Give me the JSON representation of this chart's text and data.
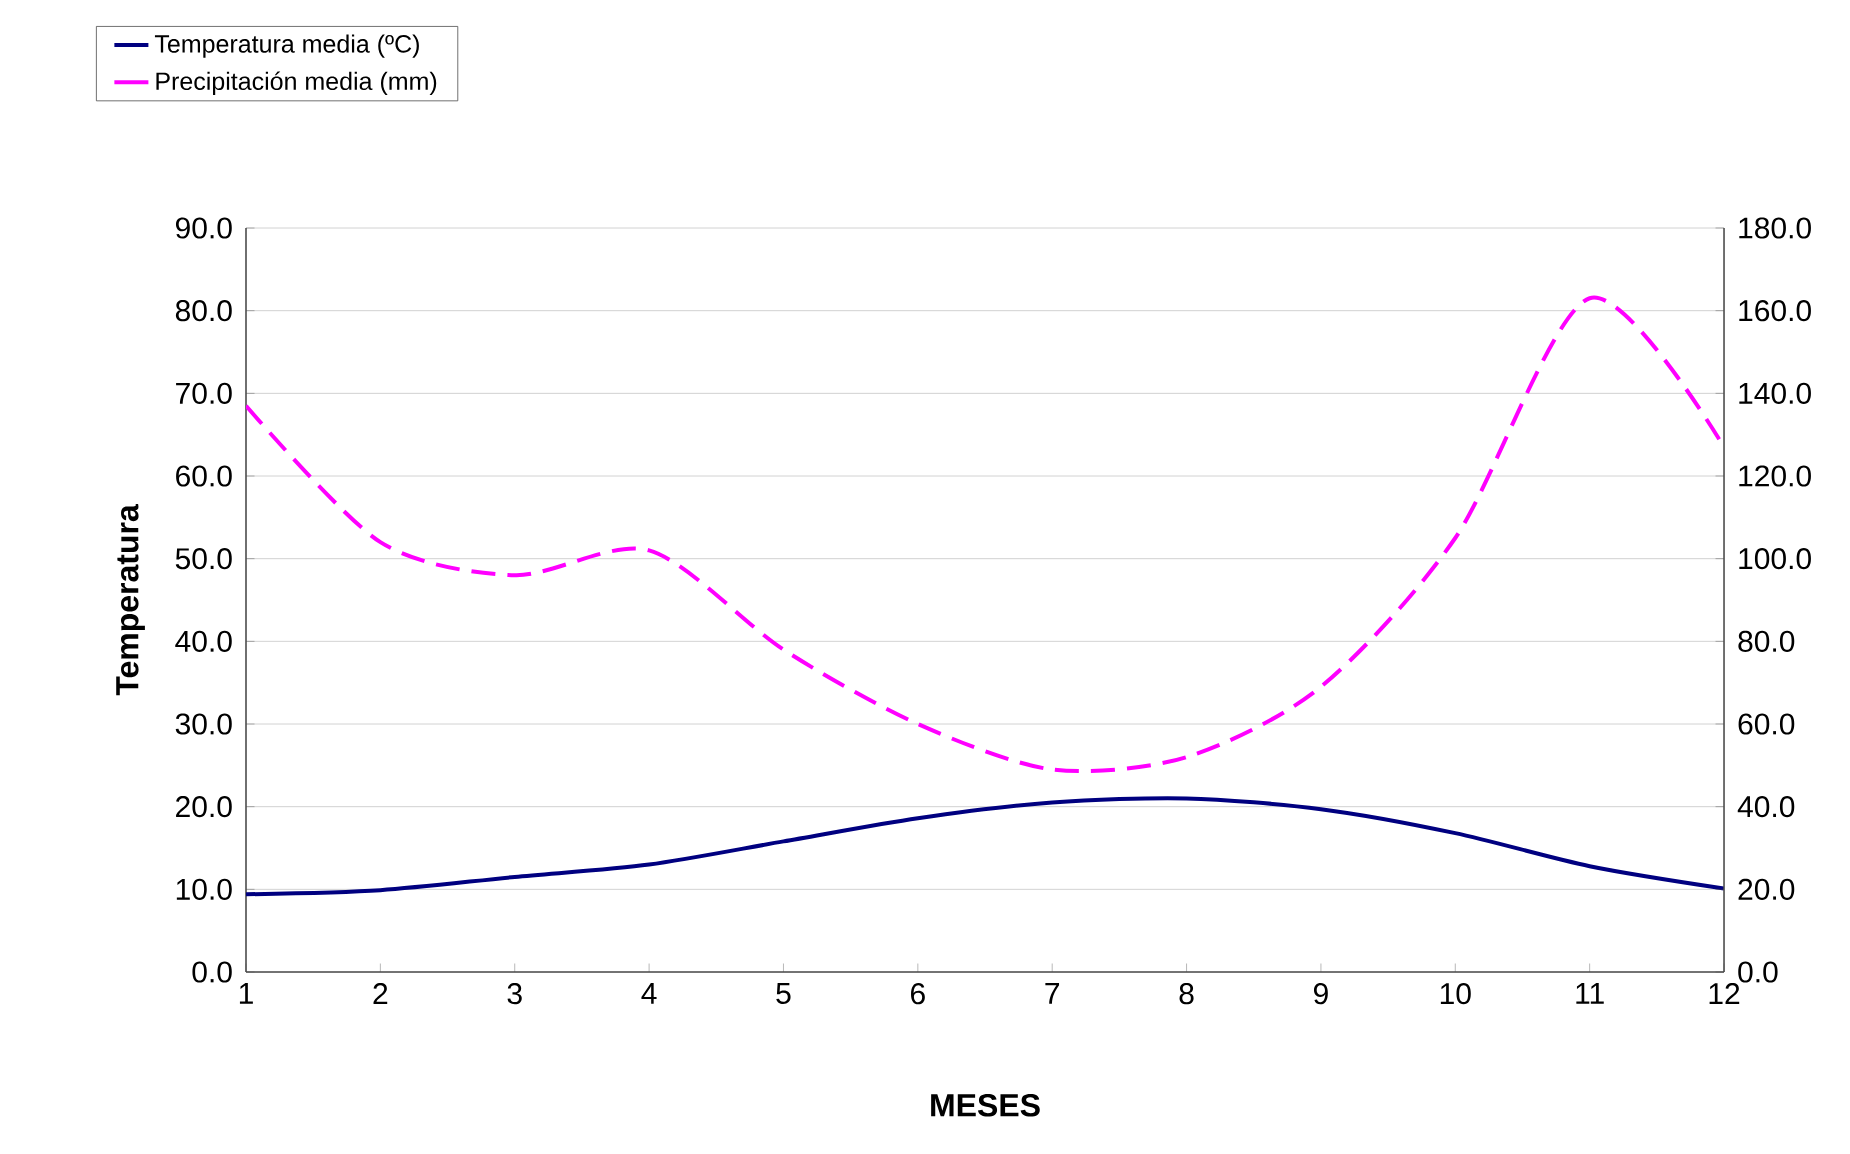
{
  "chart_data": {
    "type": "line",
    "xlabel": "MESES",
    "ylabel": "Temperatura",
    "x": [
      1,
      2,
      3,
      4,
      5,
      6,
      7,
      8,
      9,
      10,
      11,
      12
    ],
    "xlim": [
      1,
      12
    ],
    "xticks": [
      1,
      2,
      3,
      4,
      5,
      6,
      7,
      8,
      9,
      10,
      11,
      12
    ],
    "ylim": [
      0,
      90
    ],
    "yticks": [
      {
        "value": 0,
        "label": "0.0"
      },
      {
        "value": 10,
        "label": "10.0"
      },
      {
        "value": 20,
        "label": "20.0"
      },
      {
        "value": 30,
        "label": "30.0"
      },
      {
        "value": 40,
        "label": "40.0"
      },
      {
        "value": 50,
        "label": "50.0"
      },
      {
        "value": 60,
        "label": "60.0"
      },
      {
        "value": 70,
        "label": "70.0"
      },
      {
        "value": 80,
        "label": "80.0"
      },
      {
        "value": 90,
        "label": "90.0"
      }
    ],
    "y2lim": [
      0,
      180
    ],
    "y2ticks": [
      {
        "value": 0,
        "label": "0.0"
      },
      {
        "value": 20,
        "label": "20.0"
      },
      {
        "value": 40,
        "label": "40.0"
      },
      {
        "value": 60,
        "label": "60.0"
      },
      {
        "value": 80,
        "label": "80.0"
      },
      {
        "value": 100,
        "label": "100.0"
      },
      {
        "value": 120,
        "label": "120.0"
      },
      {
        "value": 140,
        "label": "140.0"
      },
      {
        "value": 160,
        "label": "160.0"
      },
      {
        "value": 180,
        "label": "180.0"
      }
    ],
    "grid": "y",
    "legend": "top left",
    "series": [
      {
        "name": "Temperatura media (ºC)",
        "color": "#000080",
        "line_style": "solid",
        "values": [
          9.4,
          9.9,
          11.5,
          13.0,
          15.8,
          18.6,
          20.5,
          21.0,
          19.7,
          16.8,
          12.8,
          10.1
        ]
      },
      {
        "name": "Precipitación media (mm)",
        "color": "#ff00ff",
        "line_style": "dashed",
        "axis": "y2",
        "values": [
          137,
          104,
          96,
          102,
          78,
          60,
          49,
          52,
          69,
          105,
          163,
          127
        ]
      }
    ]
  }
}
